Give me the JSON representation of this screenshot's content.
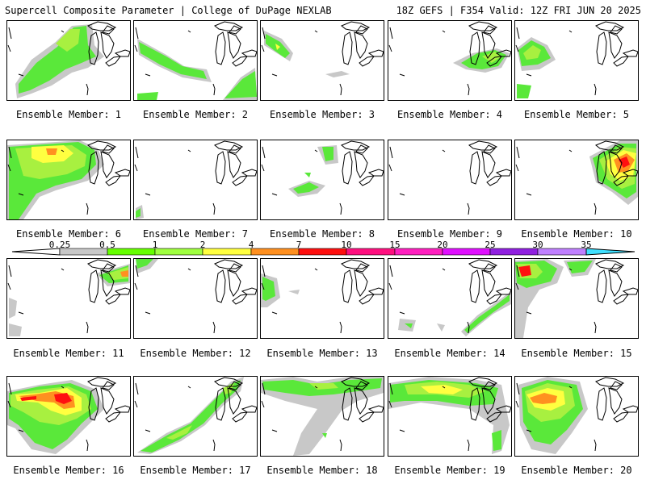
{
  "header": {
    "left": "Supercell Composite Parameter | College of DuPage NEXLAB",
    "right": "18Z GEFS | F354 Valid: 12Z FRI JUN 20 2025"
  },
  "member_prefix": "Ensemble Member:",
  "members": [
    "1",
    "2",
    "3",
    "4",
    "5",
    "6",
    "7",
    "8",
    "9",
    "10",
    "11",
    "12",
    "13",
    "14",
    "15",
    "16",
    "17",
    "18",
    "19",
    "20"
  ],
  "colorbar": {
    "levels": [
      "0.25",
      "0.5",
      "1",
      "2",
      "4",
      "7",
      "10",
      "15",
      "20",
      "25",
      "30",
      "35"
    ],
    "colors": [
      "#c8c8c8",
      "#66ff00",
      "#a0ff40",
      "#ffff40",
      "#ff9020",
      "#ff1010",
      "#ff1080",
      "#ff20c0",
      "#e010ff",
      "#9020e0",
      "#c080ff",
      "#40e0ff"
    ]
  },
  "colors": {
    "gray": "#c8c8c8",
    "green": "#5ae83a",
    "lightgreen": "#a8f040",
    "yellow": "#ffff40",
    "orange": "#ff9020",
    "red": "#ff1010"
  }
}
